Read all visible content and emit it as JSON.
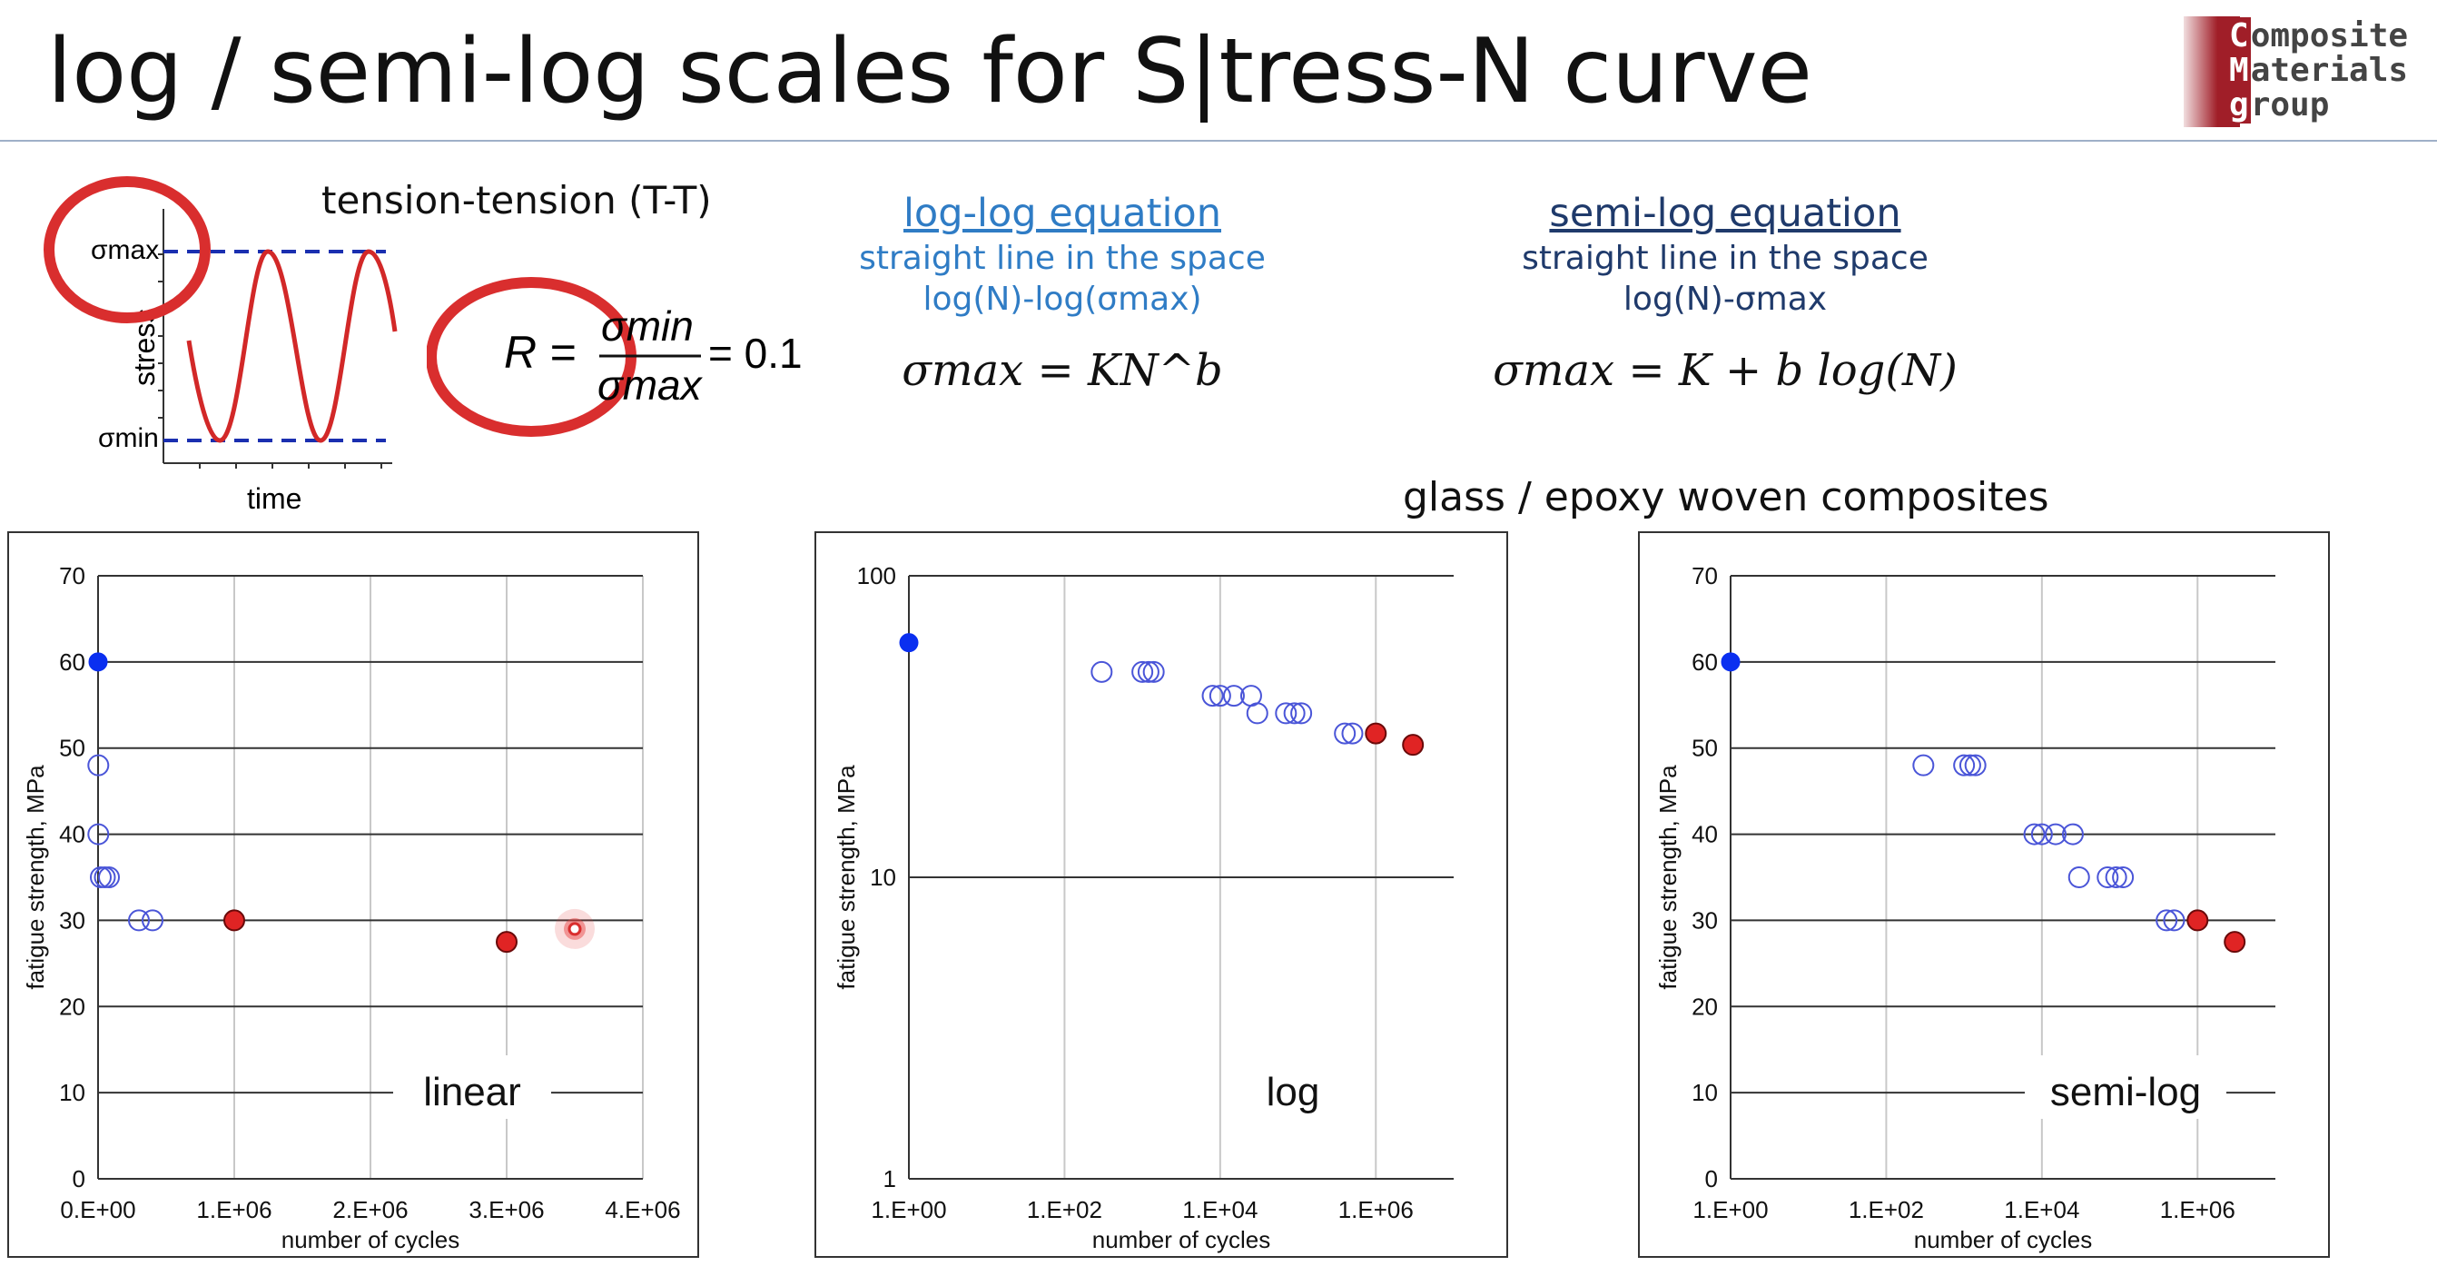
{
  "slide": {
    "title": "log / semi-log scales for S|tress-N curve",
    "logo": {
      "line1_cap": "C",
      "line1_rest": "omposite",
      "line2_cap": "M",
      "line2_rest": "aterials",
      "line3_cap": "g",
      "line3_rest": "roup"
    },
    "loading": {
      "title": "tension-tension (T-T)",
      "sigma_max_label": "σmax",
      "sigma_min_label": "σmin",
      "y_label": "stress",
      "x_label": "time",
      "R_lhs": "R =",
      "R_num": "σmin",
      "R_den": "σmax",
      "R_rhs": "= 0.1"
    },
    "loglog": {
      "title": "log-log equation",
      "line1": "straight line in the space",
      "line2": "log(N)-log(σmax)",
      "formula": "σmax = KN^b"
    },
    "semilog": {
      "title": "semi-log equation",
      "line1": "straight line in the space",
      "line2": "log(N)-σmax",
      "formula": "σmax = K + b log(N)"
    },
    "material": "glass / epoxy woven composites",
    "colors": {
      "accent_blue": "#1f6fba",
      "dark_navy": "#1f3a6b",
      "highlight_red": "#d92e2e",
      "filled_blue": "#0a2ff0",
      "open_marker": "#4a55d8",
      "red_marker": "#e02424"
    }
  },
  "chart_data": [
    {
      "type": "scatter",
      "label": "linear",
      "xlabel": "number of cycles",
      "ylabel": "fatigue strength, MPa",
      "xscale": "linear",
      "yscale": "linear",
      "xlim": [
        0,
        4000000
      ],
      "ylim": [
        0,
        70
      ],
      "xticks": [
        "0.E+00",
        "1.E+06",
        "2.E+06",
        "3.E+06",
        "4.E+06"
      ],
      "xtick_values": [
        0,
        1000000,
        2000000,
        3000000,
        4000000
      ],
      "yticks": [
        "0",
        "10",
        "20",
        "30",
        "40",
        "50",
        "60",
        "70"
      ],
      "ytick_values": [
        0,
        10,
        20,
        30,
        40,
        50,
        60,
        70
      ],
      "grid": true,
      "series": [
        {
          "style": "filled-blue",
          "points": [
            [
              1,
              60
            ]
          ]
        },
        {
          "style": "open",
          "points": [
            [
              2000,
              48
            ],
            [
              2000,
              40
            ],
            [
              20000,
              35
            ],
            [
              50000,
              35
            ],
            [
              80000,
              35
            ],
            [
              300000,
              30
            ],
            [
              400000,
              30
            ]
          ]
        },
        {
          "style": "filled-red",
          "points": [
            [
              1000000,
              30
            ],
            [
              3000000,
              27.5
            ]
          ]
        },
        {
          "style": "highlight",
          "points": [
            [
              3500000,
              29
            ]
          ]
        }
      ]
    },
    {
      "type": "scatter",
      "label": "log",
      "xlabel": "number of cycles",
      "ylabel": "fatigue strength, MPa",
      "xscale": "log",
      "yscale": "log",
      "xlim": [
        1,
        10000000
      ],
      "ylim": [
        1,
        100
      ],
      "xticks": [
        "1.E+00",
        "1.E+02",
        "1.E+04",
        "1.E+06"
      ],
      "xtick_values": [
        1,
        100,
        10000,
        1000000
      ],
      "yticks": [
        "1",
        "10",
        "100"
      ],
      "ytick_values": [
        1,
        10,
        100
      ],
      "grid": true,
      "series": [
        {
          "style": "filled-blue",
          "points": [
            [
              1,
              60
            ]
          ]
        },
        {
          "style": "open",
          "points": [
            [
              300,
              48
            ],
            [
              1000,
              48
            ],
            [
              1200,
              48
            ],
            [
              1400,
              48
            ],
            [
              8000,
              40
            ],
            [
              10000,
              40
            ],
            [
              15000,
              40
            ],
            [
              25000,
              40
            ],
            [
              30000,
              35
            ],
            [
              70000,
              35
            ],
            [
              90000,
              35
            ],
            [
              110000,
              35
            ],
            [
              400000,
              30
            ],
            [
              500000,
              30
            ]
          ]
        },
        {
          "style": "filled-red",
          "points": [
            [
              1000000,
              30
            ],
            [
              3000000,
              27.5
            ]
          ]
        }
      ]
    },
    {
      "type": "scatter",
      "label": "semi-log",
      "xlabel": "number of cycles",
      "ylabel": "fatigue strength, MPa",
      "xscale": "log",
      "yscale": "linear",
      "xlim": [
        1,
        10000000
      ],
      "ylim": [
        0,
        70
      ],
      "xticks": [
        "1.E+00",
        "1.E+02",
        "1.E+04",
        "1.E+06"
      ],
      "xtick_values": [
        1,
        100,
        10000,
        1000000
      ],
      "yticks": [
        "0",
        "10",
        "20",
        "30",
        "40",
        "50",
        "60",
        "70"
      ],
      "ytick_values": [
        0,
        10,
        20,
        30,
        40,
        50,
        60,
        70
      ],
      "grid": true,
      "series": [
        {
          "style": "filled-blue",
          "points": [
            [
              1,
              60
            ]
          ]
        },
        {
          "style": "open",
          "points": [
            [
              300,
              48
            ],
            [
              1000,
              48
            ],
            [
              1200,
              48
            ],
            [
              1400,
              48
            ],
            [
              8000,
              40
            ],
            [
              10000,
              40
            ],
            [
              15000,
              40
            ],
            [
              25000,
              40
            ],
            [
              30000,
              35
            ],
            [
              70000,
              35
            ],
            [
              90000,
              35
            ],
            [
              110000,
              35
            ],
            [
              400000,
              30
            ],
            [
              500000,
              30
            ]
          ]
        },
        {
          "style": "filled-red",
          "points": [
            [
              1000000,
              30
            ],
            [
              3000000,
              27.5
            ]
          ]
        }
      ]
    }
  ]
}
